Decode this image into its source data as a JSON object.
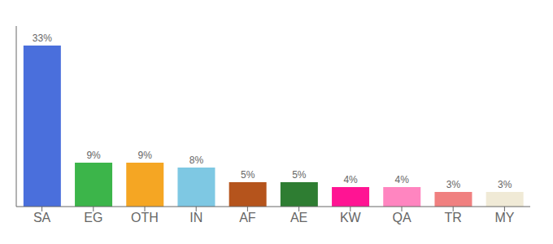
{
  "chart_data": {
    "type": "bar",
    "categories": [
      "SA",
      "EG",
      "OTH",
      "IN",
      "AF",
      "AE",
      "KW",
      "QA",
      "TR",
      "MY"
    ],
    "values": [
      33,
      9,
      9,
      8,
      5,
      5,
      4,
      4,
      3,
      3
    ],
    "value_labels": [
      "33%",
      "9%",
      "9%",
      "8%",
      "5%",
      "5%",
      "4%",
      "4%",
      "3%",
      "3%"
    ],
    "colors": [
      "#4a6fdc",
      "#3cb54a",
      "#f5a623",
      "#7ec8e3",
      "#b5541c",
      "#2e7d32",
      "#ff1493",
      "#ff85c0",
      "#f08080",
      "#f0ead6"
    ],
    "ylim": [
      0,
      37
    ],
    "data_labels": true,
    "tick_labels": "x",
    "grid": false
  }
}
